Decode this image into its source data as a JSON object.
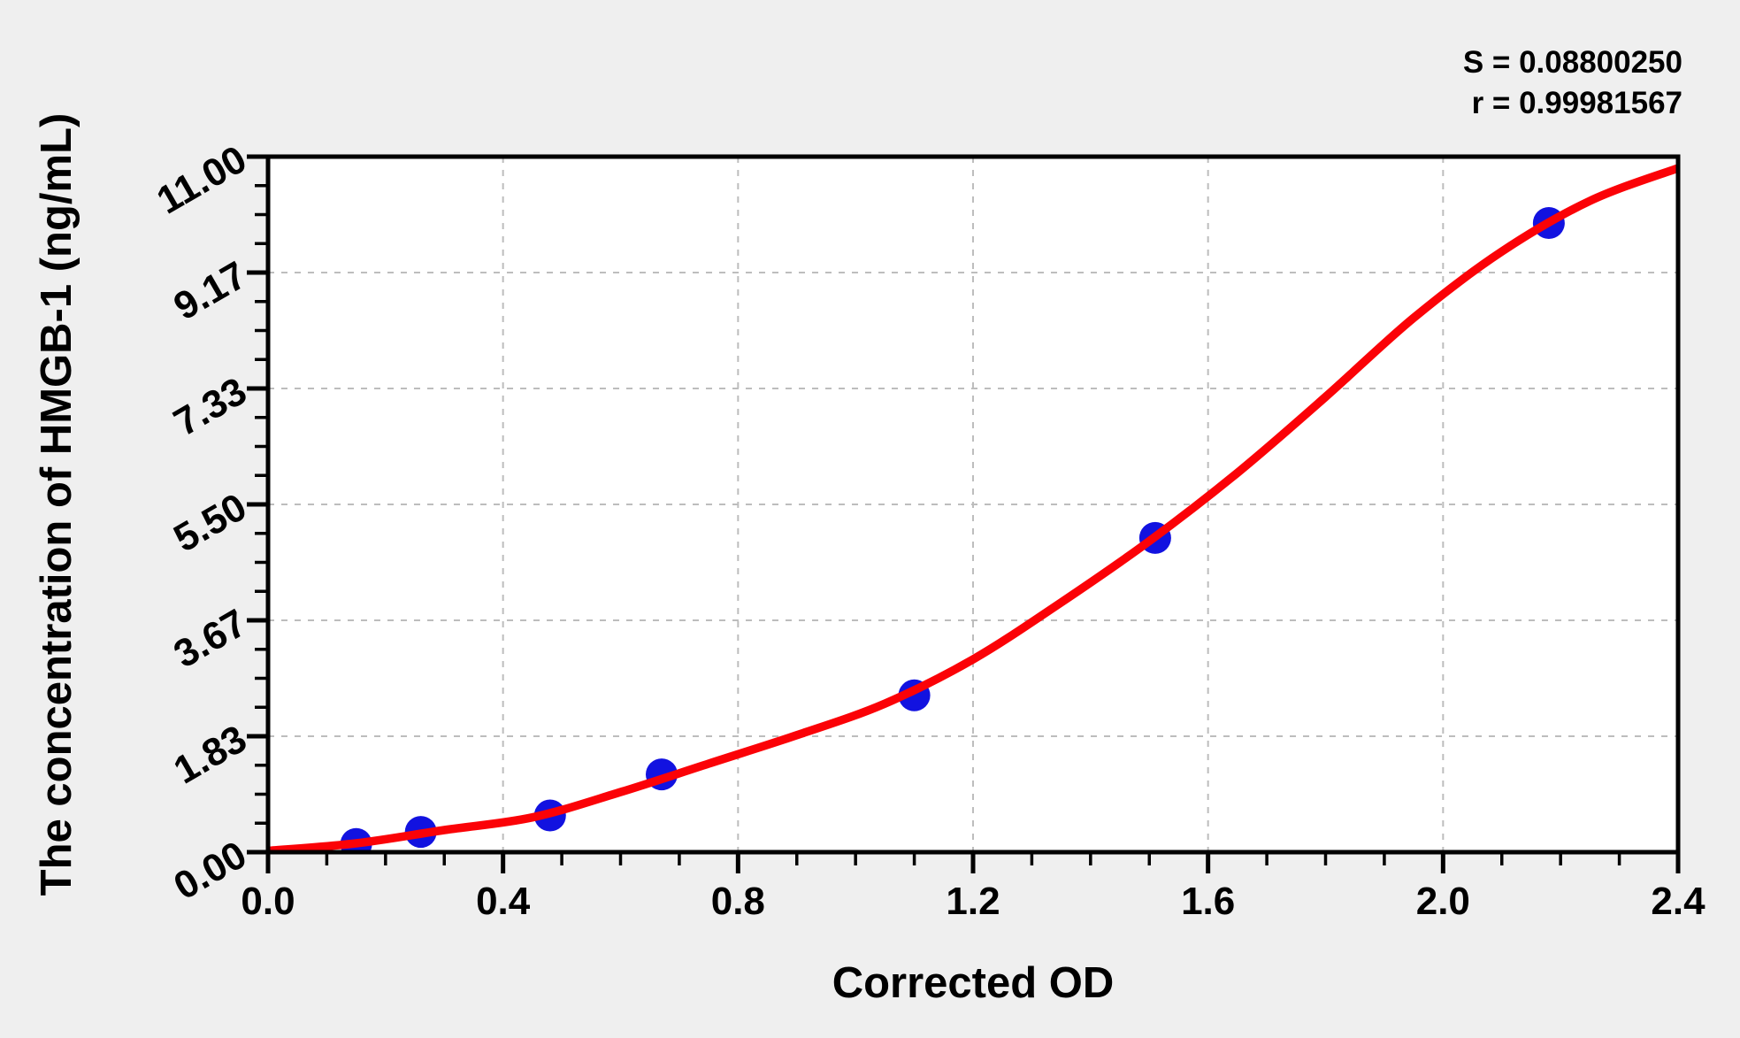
{
  "page": {
    "background": "#efefef",
    "plot_background": "#ffffff",
    "frame_color": "#000000",
    "grid_color": "#bdbdbd"
  },
  "chart_data": {
    "type": "scatter",
    "title": "",
    "xlabel": "Corrected OD",
    "ylabel": "The concentration of HMGB-1 (ng/mL)",
    "xlim": [
      0.0,
      2.4
    ],
    "ylim": [
      0.0,
      11.0
    ],
    "grid": {
      "show": true,
      "style": "dashed",
      "color": "#bdbdbd"
    },
    "x_major_ticks": [
      {
        "value": 0.0,
        "label": "0.0"
      },
      {
        "value": 0.4,
        "label": "0.4"
      },
      {
        "value": 0.8,
        "label": "0.8"
      },
      {
        "value": 1.2,
        "label": "1.2"
      },
      {
        "value": 1.6,
        "label": "1.6"
      },
      {
        "value": 2.0,
        "label": "2.0"
      },
      {
        "value": 2.4,
        "label": "2.4"
      }
    ],
    "x_minor_step": 0.1,
    "y_major_ticks": [
      {
        "value": 0.0,
        "label": "0.00"
      },
      {
        "value": 1.8333,
        "label": "1.83"
      },
      {
        "value": 3.6667,
        "label": "3.67"
      },
      {
        "value": 5.5,
        "label": "5.50"
      },
      {
        "value": 7.3333,
        "label": "7.33"
      },
      {
        "value": 9.1667,
        "label": "9.17"
      },
      {
        "value": 11.0,
        "label": "11.00"
      }
    ],
    "y_minor_per_major": 3,
    "annotations": {
      "s_line": "S = 0.08800250",
      "r_line": "r = 0.99981567"
    },
    "series": [
      {
        "name": "standard-points",
        "type": "scatter",
        "marker": "circle",
        "color": "#1212e0",
        "points": [
          [
            0.15,
            0.13
          ],
          [
            0.26,
            0.32
          ],
          [
            0.48,
            0.58
          ],
          [
            0.67,
            1.23
          ],
          [
            1.1,
            2.48
          ],
          [
            1.51,
            4.97
          ],
          [
            2.18,
            9.95
          ]
        ]
      },
      {
        "name": "fitted-curve",
        "type": "line",
        "color": "#fb0207",
        "points": [
          [
            0.0,
            0.02
          ],
          [
            0.15,
            0.14
          ],
          [
            0.3,
            0.35
          ],
          [
            0.45,
            0.55
          ],
          [
            0.6,
            0.95
          ],
          [
            0.75,
            1.4
          ],
          [
            0.9,
            1.85
          ],
          [
            1.05,
            2.35
          ],
          [
            1.2,
            3.05
          ],
          [
            1.35,
            3.95
          ],
          [
            1.5,
            4.92
          ],
          [
            1.65,
            6.0
          ],
          [
            1.8,
            7.2
          ],
          [
            1.95,
            8.45
          ],
          [
            2.1,
            9.5
          ],
          [
            2.25,
            10.3
          ],
          [
            2.4,
            10.82
          ]
        ]
      }
    ]
  }
}
